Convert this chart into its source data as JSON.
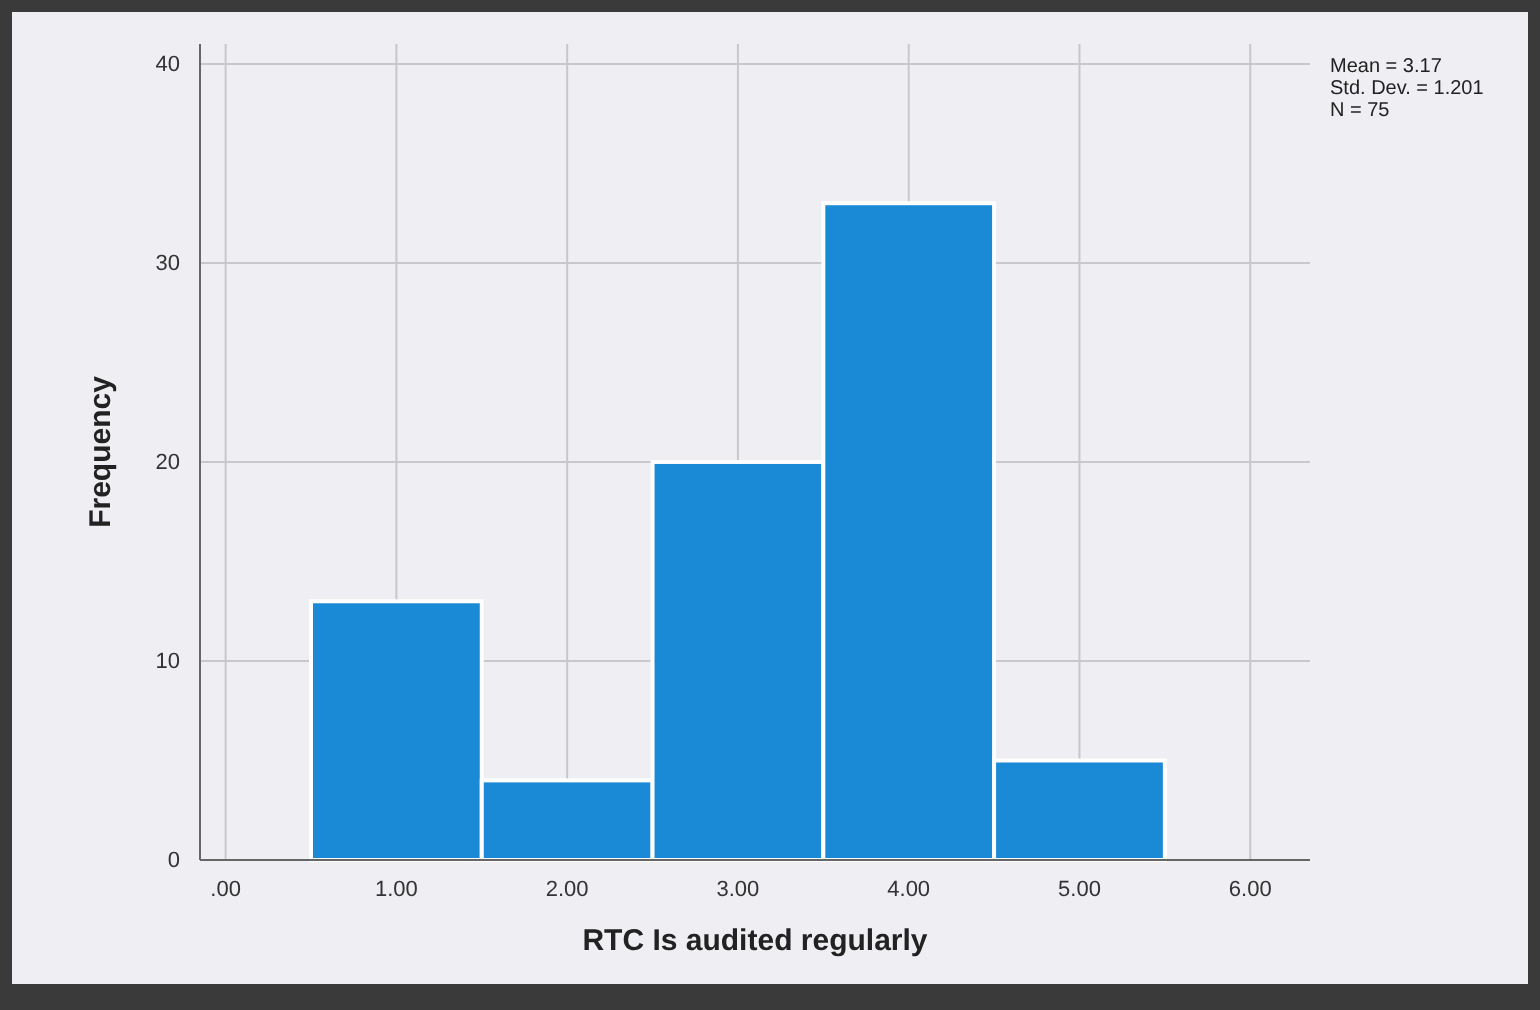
{
  "chart_data": {
    "type": "histogram",
    "xlabel": "RTC  Is audited regularly",
    "ylabel": "Frequency",
    "bins": [
      0.5,
      1.5,
      2.5,
      3.5,
      4.5,
      5.5
    ],
    "values": [
      13,
      4,
      20,
      33,
      5
    ],
    "color": "#1a8ad6",
    "xlim": [
      -0.15,
      6.35
    ],
    "ylim": [
      0,
      41
    ],
    "xticks": [
      {
        "value": 0,
        "label": ".00"
      },
      {
        "value": 1,
        "label": "1.00"
      },
      {
        "value": 2,
        "label": "2.00"
      },
      {
        "value": 3,
        "label": "3.00"
      },
      {
        "value": 4,
        "label": "4.00"
      },
      {
        "value": 5,
        "label": "5.00"
      },
      {
        "value": 6,
        "label": "6.00"
      }
    ],
    "yticks": [
      0,
      10,
      20,
      30,
      40
    ],
    "grid": true,
    "annotations": [
      "Mean = 3.17",
      "Std. Dev. = 1.201",
      "N = 75"
    ]
  }
}
